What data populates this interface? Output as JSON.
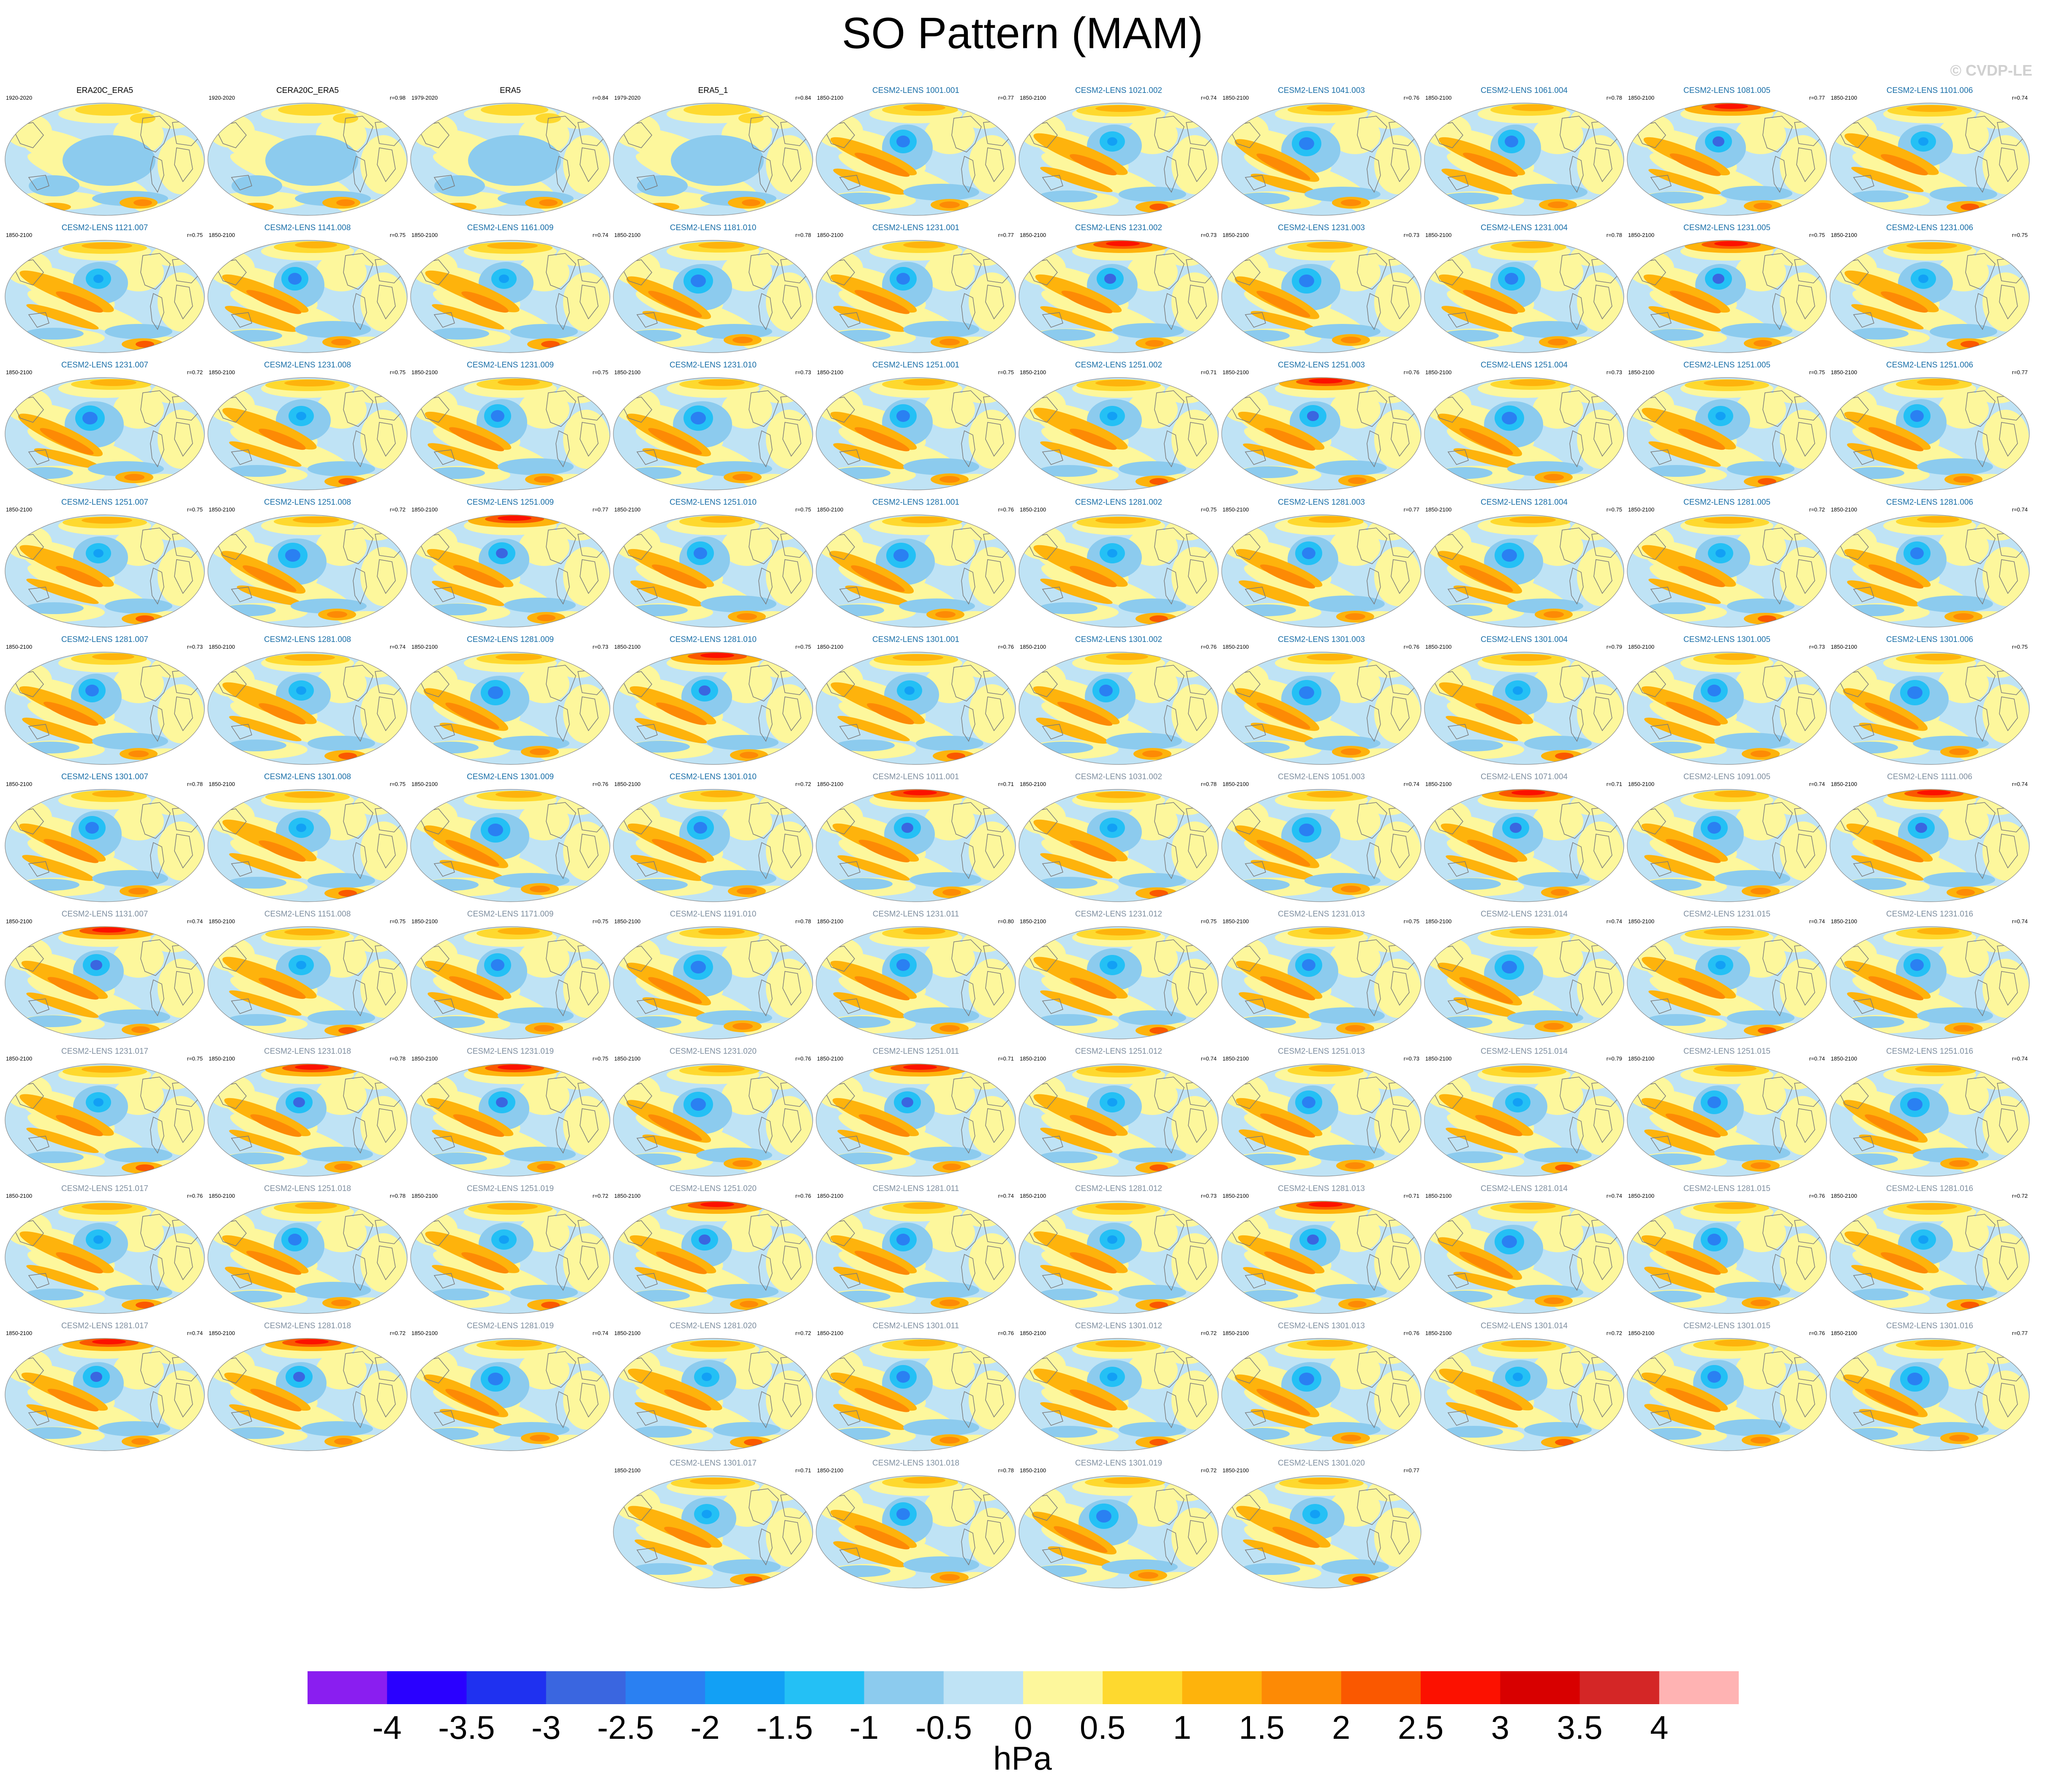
{
  "title": "SO Pattern (MAM)",
  "watermark": "© CVDP-LE",
  "colors": {
    "obs_title": "#000000",
    "model_title_a": "#1a6fa8",
    "model_title_b": "#7f8fa0",
    "land_outline": "#7a7a7a"
  },
  "chart_data": {
    "type": "heatmap",
    "projection": "robinson-style ellipse",
    "units": "hPa",
    "colorbar": {
      "ticks": [
        "-4",
        "-3.5",
        "-3",
        "-2.5",
        "-2",
        "-1.5",
        "-1",
        "-0.5",
        "0",
        "0.5",
        "1",
        "1.5",
        "2",
        "2.5",
        "3",
        "3.5",
        "4"
      ],
      "colors": [
        "#8a1ef0",
        "#2a00ff",
        "#1f31f0",
        "#3a66e0",
        "#2a80f2",
        "#12a0f5",
        "#24c0f5",
        "#8ccbee",
        "#bfe3f5",
        "#fdf79c",
        "#fed92f",
        "#feb30c",
        "#fd8a05",
        "#fa5800",
        "#fc1100",
        "#d80000",
        "#d42626",
        "#ffb3b3"
      ]
    },
    "panels": [
      {
        "title": "ERA20C_ERA5",
        "years": "1920-2020",
        "r": "",
        "type": "obs",
        "variant": "obs"
      },
      {
        "title": "CERA20C_ERA5",
        "years": "1920-2020",
        "r": "r=0.98",
        "type": "obs",
        "variant": "obs"
      },
      {
        "title": "ERA5",
        "years": "1979-2020",
        "r": "r=0.84",
        "type": "obs",
        "variant": "obs"
      },
      {
        "title": "ERA5_1",
        "years": "1979-2020",
        "r": "r=0.84",
        "type": "obs",
        "variant": "obs"
      },
      {
        "title": "CESM2-LENS 1001.001",
        "years": "1850-2100",
        "r": "r=0.77",
        "type": "a",
        "variant": "m1"
      },
      {
        "title": "CESM2-LENS 1021.002",
        "years": "1850-2100",
        "r": "r=0.74",
        "type": "a",
        "variant": "m2"
      },
      {
        "title": "CESM2-LENS 1041.003",
        "years": "1850-2100",
        "r": "r=0.76",
        "type": "a",
        "variant": "m3"
      },
      {
        "title": "CESM2-LENS 1061.004",
        "years": "1850-2100",
        "r": "r=0.78",
        "type": "a",
        "variant": "m1"
      },
      {
        "title": "CESM2-LENS 1081.005",
        "years": "1850-2100",
        "r": "r=0.77",
        "type": "a",
        "variant": "m4"
      },
      {
        "title": "CESM2-LENS 1101.006",
        "years": "1850-2100",
        "r": "r=0.74",
        "type": "a",
        "variant": "m2"
      },
      {
        "title": "CESM2-LENS 1121.007",
        "years": "1850-2100",
        "r": "r=0.75",
        "type": "a",
        "variant": "m2"
      },
      {
        "title": "CESM2-LENS 1141.008",
        "years": "1850-2100",
        "r": "r=0.75",
        "type": "a",
        "variant": "m1"
      },
      {
        "title": "CESM2-LENS 1161.009",
        "years": "1850-2100",
        "r": "r=0.74",
        "type": "a",
        "variant": "m2"
      },
      {
        "title": "CESM2-LENS 1181.010",
        "years": "1850-2100",
        "r": "r=0.78",
        "type": "a",
        "variant": "m3"
      },
      {
        "title": "CESM2-LENS 1231.001",
        "years": "1850-2100",
        "r": "r=0.77",
        "type": "a",
        "variant": "m1"
      },
      {
        "title": "CESM2-LENS 1231.002",
        "years": "1850-2100",
        "r": "r=0.73",
        "type": "a",
        "variant": "m4"
      },
      {
        "title": "CESM2-LENS 1231.003",
        "years": "1850-2100",
        "r": "r=0.73",
        "type": "a",
        "variant": "m3"
      },
      {
        "title": "CESM2-LENS 1231.004",
        "years": "1850-2100",
        "r": "r=0.78",
        "type": "a",
        "variant": "m1"
      },
      {
        "title": "CESM2-LENS 1231.005",
        "years": "1850-2100",
        "r": "r=0.75",
        "type": "a",
        "variant": "m4"
      },
      {
        "title": "CESM2-LENS 1231.006",
        "years": "1850-2100",
        "r": "r=0.75",
        "type": "a",
        "variant": "m2"
      },
      {
        "title": "CESM2-LENS 1231.007",
        "years": "1850-2100",
        "r": "r=0.72",
        "type": "a",
        "variant": "m3"
      },
      {
        "title": "CESM2-LENS 1231.008",
        "years": "1850-2100",
        "r": "r=0.75",
        "type": "a",
        "variant": "m2"
      },
      {
        "title": "CESM2-LENS 1231.009",
        "years": "1850-2100",
        "r": "r=0.75",
        "type": "a",
        "variant": "m1"
      },
      {
        "title": "CESM2-LENS 1231.010",
        "years": "1850-2100",
        "r": "r=0.73",
        "type": "a",
        "variant": "m3"
      },
      {
        "title": "CESM2-LENS 1251.001",
        "years": "1850-2100",
        "r": "r=0.75",
        "type": "a",
        "variant": "m1"
      },
      {
        "title": "CESM2-LENS 1251.002",
        "years": "1850-2100",
        "r": "r=0.71",
        "type": "a",
        "variant": "m2"
      },
      {
        "title": "CESM2-LENS 1251.003",
        "years": "1850-2100",
        "r": "r=0.76",
        "type": "a",
        "variant": "m4"
      },
      {
        "title": "CESM2-LENS 1251.004",
        "years": "1850-2100",
        "r": "r=0.73",
        "type": "a",
        "variant": "m3"
      },
      {
        "title": "CESM2-LENS 1251.005",
        "years": "1850-2100",
        "r": "r=0.75",
        "type": "a",
        "variant": "m2"
      },
      {
        "title": "CESM2-LENS 1251.006",
        "years": "1850-2100",
        "r": "r=0.77",
        "type": "a",
        "variant": "m1"
      },
      {
        "title": "CESM2-LENS 1251.007",
        "years": "1850-2100",
        "r": "r=0.75",
        "type": "a",
        "variant": "m2"
      },
      {
        "title": "CESM2-LENS 1251.008",
        "years": "1850-2100",
        "r": "r=0.72",
        "type": "a",
        "variant": "m3"
      },
      {
        "title": "CESM2-LENS 1251.009",
        "years": "1850-2100",
        "r": "r=0.77",
        "type": "a",
        "variant": "m4"
      },
      {
        "title": "CESM2-LENS 1251.010",
        "years": "1850-2100",
        "r": "r=0.75",
        "type": "a",
        "variant": "m1"
      },
      {
        "title": "CESM2-LENS 1281.001",
        "years": "1850-2100",
        "r": "r=0.76",
        "type": "a",
        "variant": "m3"
      },
      {
        "title": "CESM2-LENS 1281.002",
        "years": "1850-2100",
        "r": "r=0.75",
        "type": "a",
        "variant": "m2"
      },
      {
        "title": "CESM2-LENS 1281.003",
        "years": "1850-2100",
        "r": "r=0.77",
        "type": "a",
        "variant": "m1"
      },
      {
        "title": "CESM2-LENS 1281.004",
        "years": "1850-2100",
        "r": "r=0.75",
        "type": "a",
        "variant": "m3"
      },
      {
        "title": "CESM2-LENS 1281.005",
        "years": "1850-2100",
        "r": "r=0.72",
        "type": "a",
        "variant": "m2"
      },
      {
        "title": "CESM2-LENS 1281.006",
        "years": "1850-2100",
        "r": "r=0.74",
        "type": "a",
        "variant": "m1"
      },
      {
        "title": "CESM2-LENS 1281.007",
        "years": "1850-2100",
        "r": "r=0.73",
        "type": "a",
        "variant": "m1"
      },
      {
        "title": "CESM2-LENS 1281.008",
        "years": "1850-2100",
        "r": "r=0.74",
        "type": "a",
        "variant": "m2"
      },
      {
        "title": "CESM2-LENS 1281.009",
        "years": "1850-2100",
        "r": "r=0.73",
        "type": "a",
        "variant": "m3"
      },
      {
        "title": "CESM2-LENS 1281.010",
        "years": "1850-2100",
        "r": "r=0.75",
        "type": "a",
        "variant": "m4"
      },
      {
        "title": "CESM2-LENS 1301.001",
        "years": "1850-2100",
        "r": "r=0.76",
        "type": "a",
        "variant": "m2"
      },
      {
        "title": "CESM2-LENS 1301.002",
        "years": "1850-2100",
        "r": "r=0.76",
        "type": "a",
        "variant": "m1"
      },
      {
        "title": "CESM2-LENS 1301.003",
        "years": "1850-2100",
        "r": "r=0.76",
        "type": "a",
        "variant": "m3"
      },
      {
        "title": "CESM2-LENS 1301.004",
        "years": "1850-2100",
        "r": "r=0.79",
        "type": "a",
        "variant": "m2"
      },
      {
        "title": "CESM2-LENS 1301.005",
        "years": "1850-2100",
        "r": "r=0.73",
        "type": "a",
        "variant": "m1"
      },
      {
        "title": "CESM2-LENS 1301.006",
        "years": "1850-2100",
        "r": "r=0.75",
        "type": "a",
        "variant": "m3"
      },
      {
        "title": "CESM2-LENS 1301.007",
        "years": "1850-2100",
        "r": "r=0.78",
        "type": "a",
        "variant": "m1"
      },
      {
        "title": "CESM2-LENS 1301.008",
        "years": "1850-2100",
        "r": "r=0.75",
        "type": "a",
        "variant": "m2"
      },
      {
        "title": "CESM2-LENS 1301.009",
        "years": "1850-2100",
        "r": "r=0.76",
        "type": "a",
        "variant": "m3"
      },
      {
        "title": "CESM2-LENS 1301.010",
        "years": "1850-2100",
        "r": "r=0.72",
        "type": "a",
        "variant": "m1"
      },
      {
        "title": "CESM2-LENS 1011.001",
        "years": "1850-2100",
        "r": "r=0.71",
        "type": "b",
        "variant": "m4"
      },
      {
        "title": "CESM2-LENS 1031.002",
        "years": "1850-2100",
        "r": "r=0.78",
        "type": "b",
        "variant": "m2"
      },
      {
        "title": "CESM2-LENS 1051.003",
        "years": "1850-2100",
        "r": "r=0.74",
        "type": "b",
        "variant": "m3"
      },
      {
        "title": "CESM2-LENS 1071.004",
        "years": "1850-2100",
        "r": "r=0.71",
        "type": "b",
        "variant": "m4"
      },
      {
        "title": "CESM2-LENS 1091.005",
        "years": "1850-2100",
        "r": "r=0.74",
        "type": "b",
        "variant": "m1"
      },
      {
        "title": "CESM2-LENS 1111.006",
        "years": "1850-2100",
        "r": "r=0.74",
        "type": "b",
        "variant": "m4"
      },
      {
        "title": "CESM2-LENS 1131.007",
        "years": "1850-2100",
        "r": "r=0.74",
        "type": "b",
        "variant": "m4"
      },
      {
        "title": "CESM2-LENS 1151.008",
        "years": "1850-2100",
        "r": "r=0.75",
        "type": "b",
        "variant": "m2"
      },
      {
        "title": "CESM2-LENS 1171.009",
        "years": "1850-2100",
        "r": "r=0.75",
        "type": "b",
        "variant": "m1"
      },
      {
        "title": "CESM2-LENS 1191.010",
        "years": "1850-2100",
        "r": "r=0.78",
        "type": "b",
        "variant": "m3"
      },
      {
        "title": "CESM2-LENS 1231.011",
        "years": "1850-2100",
        "r": "r=0.80",
        "type": "b",
        "variant": "m1"
      },
      {
        "title": "CESM2-LENS 1231.012",
        "years": "1850-2100",
        "r": "r=0.75",
        "type": "b",
        "variant": "m2"
      },
      {
        "title": "CESM2-LENS 1231.013",
        "years": "1850-2100",
        "r": "r=0.75",
        "type": "b",
        "variant": "m1"
      },
      {
        "title": "CESM2-LENS 1231.014",
        "years": "1850-2100",
        "r": "r=0.74",
        "type": "b",
        "variant": "m3"
      },
      {
        "title": "CESM2-LENS 1231.015",
        "years": "1850-2100",
        "r": "r=0.74",
        "type": "b",
        "variant": "m2"
      },
      {
        "title": "CESM2-LENS 1231.016",
        "years": "1850-2100",
        "r": "r=0.74",
        "type": "b",
        "variant": "m1"
      },
      {
        "title": "CESM2-LENS 1231.017",
        "years": "1850-2100",
        "r": "r=0.75",
        "type": "b",
        "variant": "m2"
      },
      {
        "title": "CESM2-LENS 1231.018",
        "years": "1850-2100",
        "r": "r=0.78",
        "type": "b",
        "variant": "m4"
      },
      {
        "title": "CESM2-LENS 1231.019",
        "years": "1850-2100",
        "r": "r=0.75",
        "type": "b",
        "variant": "m4"
      },
      {
        "title": "CESM2-LENS 1231.020",
        "years": "1850-2100",
        "r": "r=0.76",
        "type": "b",
        "variant": "m3"
      },
      {
        "title": "CESM2-LENS 1251.011",
        "years": "1850-2100",
        "r": "r=0.71",
        "type": "b",
        "variant": "m4"
      },
      {
        "title": "CESM2-LENS 1251.012",
        "years": "1850-2100",
        "r": "r=0.74",
        "type": "b",
        "variant": "m2"
      },
      {
        "title": "CESM2-LENS 1251.013",
        "years": "1850-2100",
        "r": "r=0.73",
        "type": "b",
        "variant": "m1"
      },
      {
        "title": "CESM2-LENS 1251.014",
        "years": "1850-2100",
        "r": "r=0.79",
        "type": "b",
        "variant": "m2"
      },
      {
        "title": "CESM2-LENS 1251.015",
        "years": "1850-2100",
        "r": "r=0.74",
        "type": "b",
        "variant": "m1"
      },
      {
        "title": "CESM2-LENS 1251.016",
        "years": "1850-2100",
        "r": "r=0.74",
        "type": "b",
        "variant": "m3"
      },
      {
        "title": "CESM2-LENS 1251.017",
        "years": "1850-2100",
        "r": "r=0.76",
        "type": "b",
        "variant": "m2"
      },
      {
        "title": "CESM2-LENS 1251.018",
        "years": "1850-2100",
        "r": "r=0.78",
        "type": "b",
        "variant": "m1"
      },
      {
        "title": "CESM2-LENS 1251.019",
        "years": "1850-2100",
        "r": "r=0.72",
        "type": "b",
        "variant": "m2"
      },
      {
        "title": "CESM2-LENS 1251.020",
        "years": "1850-2100",
        "r": "r=0.76",
        "type": "b",
        "variant": "m4"
      },
      {
        "title": "CESM2-LENS 1281.011",
        "years": "1850-2100",
        "r": "r=0.74",
        "type": "b",
        "variant": "m1"
      },
      {
        "title": "CESM2-LENS 1281.012",
        "years": "1850-2100",
        "r": "r=0.73",
        "type": "b",
        "variant": "m2"
      },
      {
        "title": "CESM2-LENS 1281.013",
        "years": "1850-2100",
        "r": "r=0.71",
        "type": "b",
        "variant": "m4"
      },
      {
        "title": "CESM2-LENS 1281.014",
        "years": "1850-2100",
        "r": "r=0.74",
        "type": "b",
        "variant": "m3"
      },
      {
        "title": "CESM2-LENS 1281.015",
        "years": "1850-2100",
        "r": "r=0.76",
        "type": "b",
        "variant": "m1"
      },
      {
        "title": "CESM2-LENS 1281.016",
        "years": "1850-2100",
        "r": "r=0.72",
        "type": "b",
        "variant": "m2"
      },
      {
        "title": "CESM2-LENS 1281.017",
        "years": "1850-2100",
        "r": "r=0.74",
        "type": "b",
        "variant": "m4"
      },
      {
        "title": "CESM2-LENS 1281.018",
        "years": "1850-2100",
        "r": "r=0.72",
        "type": "b",
        "variant": "m4"
      },
      {
        "title": "CESM2-LENS 1281.019",
        "years": "1850-2100",
        "r": "r=0.74",
        "type": "b",
        "variant": "m3"
      },
      {
        "title": "CESM2-LENS 1281.020",
        "years": "1850-2100",
        "r": "r=0.72",
        "type": "b",
        "variant": "m2"
      },
      {
        "title": "CESM2-LENS 1301.011",
        "years": "1850-2100",
        "r": "r=0.76",
        "type": "b",
        "variant": "m1"
      },
      {
        "title": "CESM2-LENS 1301.012",
        "years": "1850-2100",
        "r": "r=0.72",
        "type": "b",
        "variant": "m2"
      },
      {
        "title": "CESM2-LENS 1301.013",
        "years": "1850-2100",
        "r": "r=0.76",
        "type": "b",
        "variant": "m3"
      },
      {
        "title": "CESM2-LENS 1301.014",
        "years": "1850-2100",
        "r": "r=0.72",
        "type": "b",
        "variant": "m2"
      },
      {
        "title": "CESM2-LENS 1301.015",
        "years": "1850-2100",
        "r": "r=0.76",
        "type": "b",
        "variant": "m1"
      },
      {
        "title": "CESM2-LENS 1301.016",
        "years": "1850-2100",
        "r": "r=0.77",
        "type": "b",
        "variant": "m3"
      },
      {
        "title": "CESM2-LENS 1301.017",
        "years": "1850-2100",
        "r": "r=0.71",
        "type": "b",
        "variant": "m2"
      },
      {
        "title": "CESM2-LENS 1301.018",
        "years": "1850-2100",
        "r": "r=0.78",
        "type": "b",
        "variant": "m1"
      },
      {
        "title": "CESM2-LENS 1301.019",
        "years": "1850-2100",
        "r": "r=0.72",
        "type": "b",
        "variant": "m3"
      },
      {
        "title": "CESM2-LENS 1301.020",
        "years": "1850-2100",
        "r": "r=0.77",
        "type": "b",
        "variant": "m2"
      }
    ]
  }
}
